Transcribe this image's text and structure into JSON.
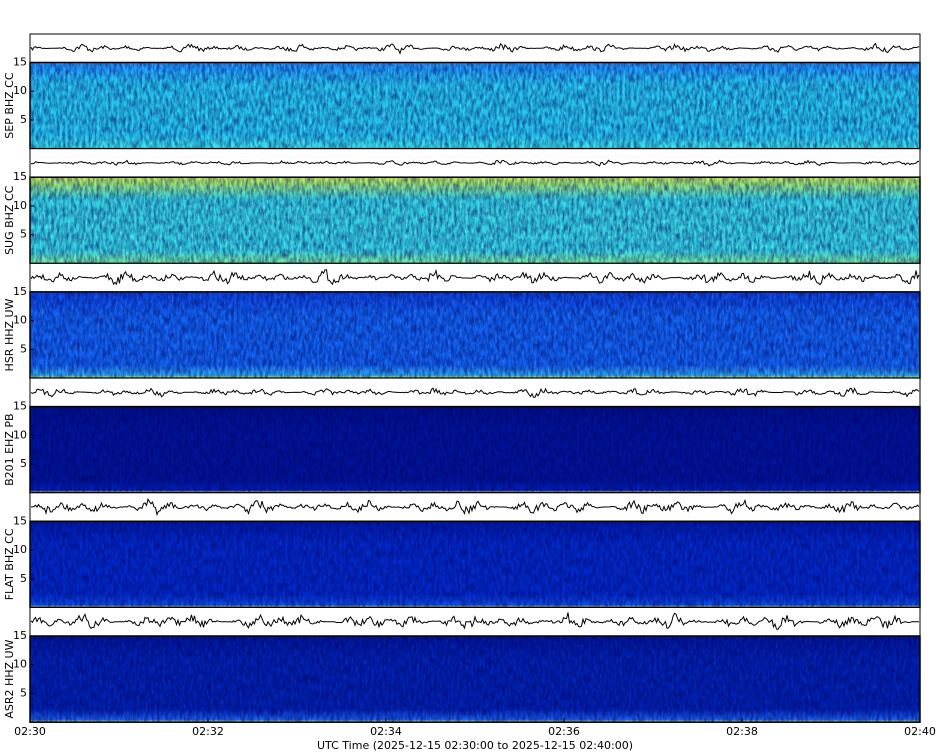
{
  "chart_data": [
    {
      "type": "spectrogram",
      "ylabel": "SEP BHZ CC",
      "ylim": [
        0,
        15
      ],
      "yticks": [
        5,
        10,
        15
      ]
    },
    {
      "type": "spectrogram",
      "ylabel": "SUG BHZ CC",
      "ylim": [
        0,
        15
      ],
      "yticks": [
        5,
        10,
        15
      ]
    },
    {
      "type": "spectrogram",
      "ylabel": "HSR HHZ UW",
      "ylim": [
        0,
        15
      ],
      "yticks": [
        5,
        10,
        15
      ]
    },
    {
      "type": "spectrogram",
      "ylabel": "B201 EHZ PB",
      "ylim": [
        0,
        15
      ],
      "yticks": [
        5,
        10,
        15
      ]
    },
    {
      "type": "spectrogram",
      "ylabel": "FLAT BHZ CC",
      "ylim": [
        0,
        15
      ],
      "yticks": [
        5,
        10,
        15
      ]
    },
    {
      "type": "spectrogram",
      "ylabel": "ASR2 HHZ UW",
      "ylim": [
        0,
        15
      ],
      "yticks": [
        5,
        10,
        15
      ],
      "categories": [
        "02:30",
        "02:32",
        "02:34",
        "02:36",
        "02:38",
        "02:40"
      ],
      "xlabel": "UTC Time (2025-12-15 02:30:00 to 2025-12-15 02:40:00)"
    }
  ]
}
